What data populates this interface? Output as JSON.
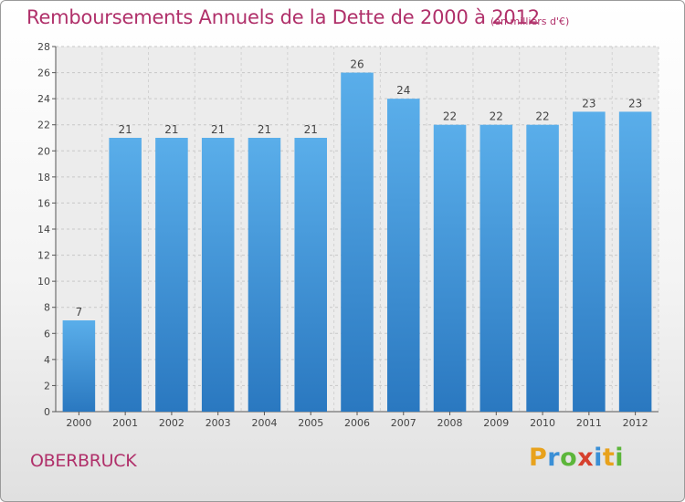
{
  "chart_data": {
    "type": "bar",
    "title": "Remboursements Annuels de la Dette de 2000 à 2012",
    "subtitle": "(en milliers d'€)",
    "categories": [
      "2000",
      "2001",
      "2002",
      "2003",
      "2004",
      "2005",
      "2006",
      "2007",
      "2008",
      "2009",
      "2010",
      "2011",
      "2012"
    ],
    "values": [
      7,
      21,
      21,
      21,
      21,
      21,
      26,
      24,
      22,
      22,
      22,
      23,
      23
    ],
    "ylim": [
      0,
      28
    ],
    "yticks": [
      0,
      2,
      4,
      6,
      8,
      10,
      12,
      14,
      16,
      18,
      20,
      22,
      24,
      26,
      28
    ],
    "grid": true,
    "bar_color": "#3a8fd6",
    "bar_color_light": "#5aaeea",
    "bar_color_dark": "#2a78c0"
  },
  "footer": {
    "city": "OBERBRUCK",
    "logo": [
      "P",
      "r",
      "o",
      "x",
      "i",
      "t",
      "i"
    ]
  },
  "colors": {
    "title": "#b0306a"
  }
}
